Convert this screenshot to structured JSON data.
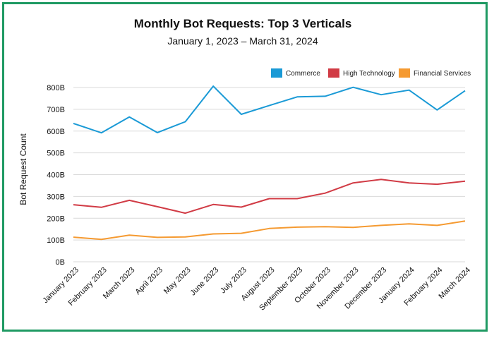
{
  "chart_data": {
    "type": "line",
    "title": "Monthly Bot Requests: Top 3 Verticals",
    "subtitle": "January 1, 2023 – March 31, 2024",
    "ylabel": "Bot Request Count",
    "xlabel": "",
    "ylim": [
      0,
      800
    ],
    "y_ticks": [
      {
        "value": 0,
        "label": "0B"
      },
      {
        "value": 100,
        "label": "100B"
      },
      {
        "value": 200,
        "label": "200B"
      },
      {
        "value": 300,
        "label": "300B"
      },
      {
        "value": 400,
        "label": "400B"
      },
      {
        "value": 500,
        "label": "500B"
      },
      {
        "value": 600,
        "label": "600B"
      },
      {
        "value": 700,
        "label": "700B"
      },
      {
        "value": 800,
        "label": "800B"
      }
    ],
    "grid": true,
    "legend_position": "top-right",
    "categories": [
      "January 2023",
      "February 2023",
      "March 2023",
      "April 2023",
      "May 2023",
      "June 2023",
      "July 2023",
      "August 2023",
      "September 2023",
      "October 2023",
      "November 2023",
      "December 2023",
      "January 2024",
      "February 2024",
      "March 2024"
    ],
    "series": [
      {
        "name": "Commerce",
        "color": "#1a9ad6",
        "values": [
          635,
          592,
          665,
          593,
          643,
          806,
          677,
          717,
          757,
          760,
          801,
          767,
          788,
          697,
          785
        ]
      },
      {
        "name": "High Technology",
        "color": "#d13b45",
        "values": [
          262,
          250,
          282,
          253,
          223,
          263,
          251,
          290,
          290,
          315,
          362,
          378,
          362,
          356,
          370
        ]
      },
      {
        "name": "Financial Services",
        "color": "#f59a31",
        "values": [
          113,
          103,
          122,
          112,
          114,
          128,
          131,
          153,
          159,
          161,
          158,
          167,
          174,
          167,
          187
        ]
      }
    ]
  }
}
